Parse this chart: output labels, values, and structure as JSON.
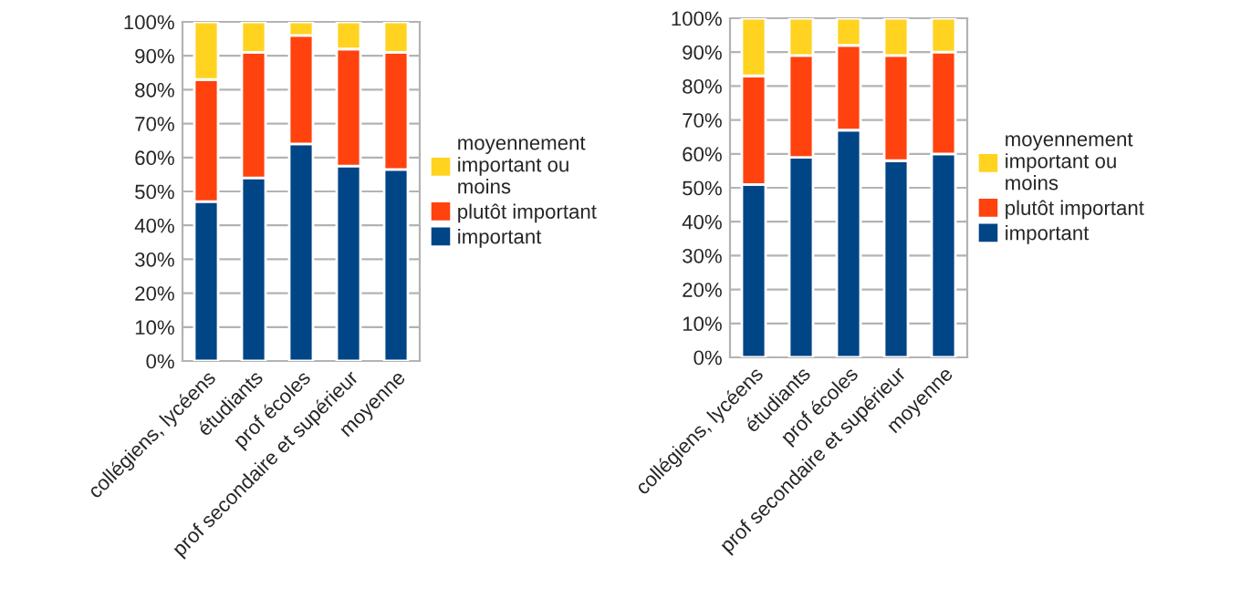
{
  "chart_data": [
    {
      "type": "bar",
      "stacked": true,
      "categories": [
        "collégiens, lycéens",
        "étudiants",
        "prof écoles",
        "prof secondaire et supérieur",
        "moyenne"
      ],
      "series": [
        {
          "name": "important",
          "color": "#004586",
          "values": [
            47,
            54,
            64,
            57.5,
            56.5
          ]
        },
        {
          "name": "plutôt important",
          "color": "#ff420e",
          "values": [
            36,
            37,
            32,
            34.5,
            34.5
          ]
        },
        {
          "name": "moyennement important ou moins",
          "color": "#ffd320",
          "values": [
            17,
            9,
            4,
            8,
            9
          ]
        }
      ],
      "ylim": [
        0,
        100
      ],
      "yticks": [
        {
          "value": 0,
          "label": "0%"
        },
        {
          "value": 10,
          "label": "10%"
        },
        {
          "value": 20,
          "label": "20%"
        },
        {
          "value": 30,
          "label": "30%"
        },
        {
          "value": 40,
          "label": "40%"
        },
        {
          "value": 50,
          "label": "50%"
        },
        {
          "value": 60,
          "label": "60%"
        },
        {
          "value": 70,
          "label": "70%"
        },
        {
          "value": 80,
          "label": "80%"
        },
        {
          "value": 90,
          "label": "90%"
        },
        {
          "value": 100,
          "label": "100%"
        }
      ],
      "grid": "y",
      "legend": "right"
    },
    {
      "type": "bar",
      "stacked": true,
      "categories": [
        "collégiens, lycéens",
        "étudiants",
        "prof écoles",
        "prof secondaire et supérieur",
        "moyenne"
      ],
      "series": [
        {
          "name": "important",
          "color": "#004586",
          "values": [
            51,
            59,
            67,
            58,
            60
          ]
        },
        {
          "name": "plutôt important",
          "color": "#ff420e",
          "values": [
            32,
            30,
            25,
            31,
            30
          ]
        },
        {
          "name": "moyennement important ou moins",
          "color": "#ffd320",
          "values": [
            17,
            11,
            8,
            11,
            10
          ]
        }
      ],
      "ylim": [
        0,
        100
      ],
      "yticks": [
        {
          "value": 0,
          "label": "0%"
        },
        {
          "value": 10,
          "label": "10%"
        },
        {
          "value": 20,
          "label": "20%"
        },
        {
          "value": 30,
          "label": "30%"
        },
        {
          "value": 40,
          "label": "40%"
        },
        {
          "value": 50,
          "label": "50%"
        },
        {
          "value": 60,
          "label": "60%"
        },
        {
          "value": 70,
          "label": "70%"
        },
        {
          "value": 80,
          "label": "80%"
        },
        {
          "value": 90,
          "label": "90%"
        },
        {
          "value": 100,
          "label": "100%"
        }
      ],
      "grid": "y",
      "legend": "right"
    }
  ]
}
